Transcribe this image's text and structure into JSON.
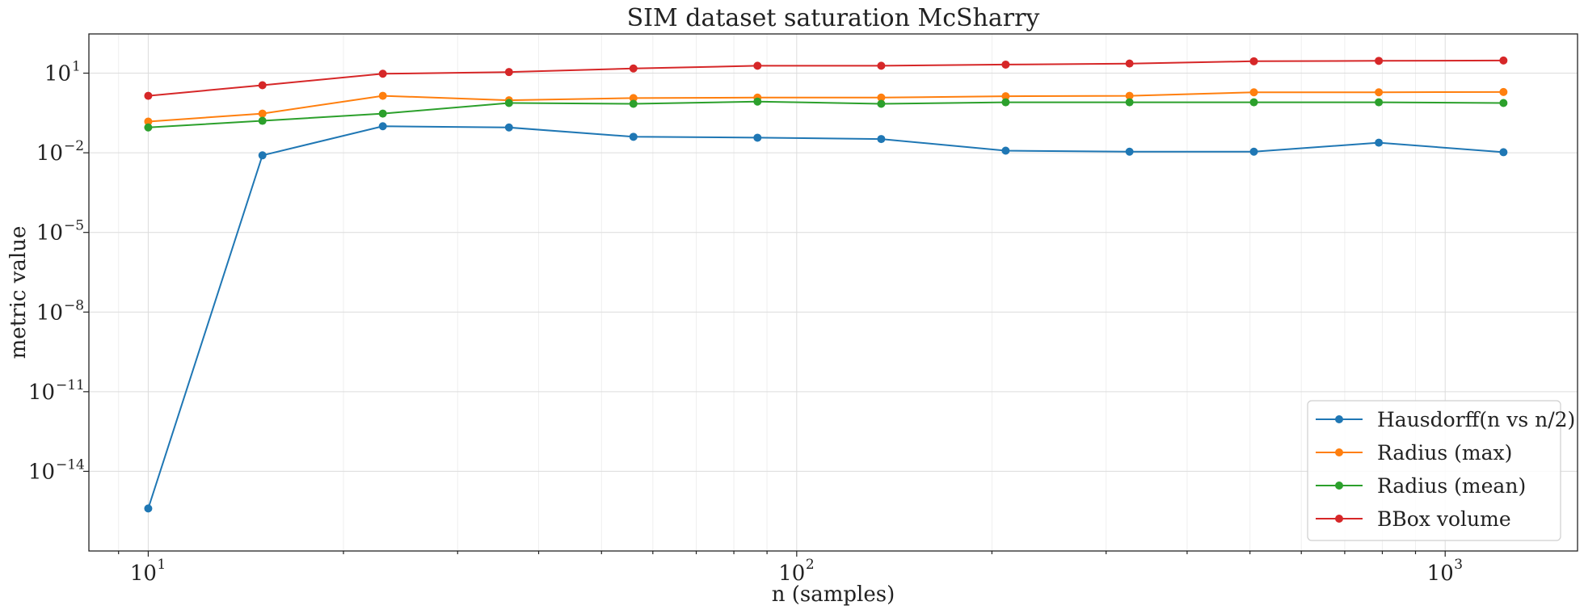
{
  "chart_data": {
    "type": "line",
    "title": "SIM dataset saturation McSharry",
    "xlabel": "n (samples)",
    "ylabel": "metric value",
    "xscale": "log",
    "yscale": "log",
    "xlim": [
      8.1,
      1600
    ],
    "ylim": [
      1e-17,
      300.0
    ],
    "grid": true,
    "legend_position": "lower-right",
    "x_ticks": [
      {
        "value": 10,
        "base": "10",
        "exp": "1"
      },
      {
        "value": 100,
        "base": "10",
        "exp": "2"
      },
      {
        "value": 1000,
        "base": "10",
        "exp": "3"
      }
    ],
    "y_ticks": [
      {
        "value": 10,
        "base": "10",
        "exp": "1"
      },
      {
        "value": 0.01,
        "base": "10",
        "exp": "−2"
      },
      {
        "value": 1e-05,
        "base": "10",
        "exp": "−5"
      },
      {
        "value": 1e-08,
        "base": "10",
        "exp": "−8"
      },
      {
        "value": 1e-11,
        "base": "10",
        "exp": "−11"
      },
      {
        "value": 1e-14,
        "base": "10",
        "exp": "−14"
      }
    ],
    "x": [
      10,
      15,
      23,
      36,
      56,
      87,
      135,
      210,
      326,
      507,
      790,
      1230
    ],
    "series": [
      {
        "name": "Hausdorff(n vs n/2)",
        "color": "#1f77b4",
        "values": [
          4e-16,
          0.008,
          0.1,
          0.09,
          0.04,
          0.037,
          0.033,
          0.012,
          0.011,
          0.011,
          0.024,
          0.0105
        ]
      },
      {
        "name": "Radius (max)",
        "color": "#ff7f0e",
        "values": [
          0.15,
          0.3,
          1.4,
          0.95,
          1.15,
          1.2,
          1.2,
          1.35,
          1.4,
          1.9,
          1.9,
          1.95
        ]
      },
      {
        "name": "Radius (mean)",
        "color": "#2ca02c",
        "values": [
          0.09,
          0.16,
          0.3,
          0.75,
          0.7,
          0.85,
          0.7,
          0.8,
          0.8,
          0.8,
          0.8,
          0.75
        ]
      },
      {
        "name": "BBox volume",
        "color": "#d62728",
        "values": [
          1.4,
          3.5,
          9.5,
          11,
          15,
          19,
          19,
          21,
          23,
          28,
          29,
          30
        ]
      }
    ]
  }
}
